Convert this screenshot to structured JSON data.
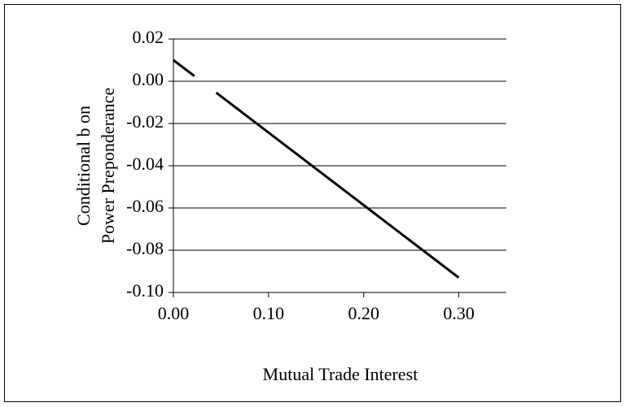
{
  "chart_data": {
    "type": "line",
    "xlabel": "Mutual Trade Interest",
    "ylabel": [
      "Conditional b on",
      "Power Preponderance"
    ],
    "x": [
      0,
      0.022,
      0.033,
      0.045,
      0.3
    ],
    "series": [
      {
        "color": "#000000",
        "values": [
          0.01,
          0.0025,
          null,
          -0.0054,
          -0.093
        ]
      }
    ],
    "xlim": [
      0,
      0.35
    ],
    "xticks": [
      {
        "value": 0,
        "label": "0.00"
      },
      {
        "value": 0.1,
        "label": "0.10"
      },
      {
        "value": 0.2,
        "label": "0.20"
      },
      {
        "value": 0.3,
        "label": "0.30"
      }
    ],
    "ylim": [
      -0.1,
      0.02
    ],
    "yticks": [
      {
        "value": 0.02,
        "label": "0.02"
      },
      {
        "value": 0,
        "label": "0.00"
      },
      {
        "value": -0.02,
        "label": "-0.02"
      },
      {
        "value": -0.04,
        "label": "-0.04"
      },
      {
        "value": -0.06,
        "label": "-0.06"
      },
      {
        "value": -0.08,
        "label": "-0.08"
      },
      {
        "value": -0.1,
        "label": "-0.10"
      }
    ],
    "grid": true
  }
}
